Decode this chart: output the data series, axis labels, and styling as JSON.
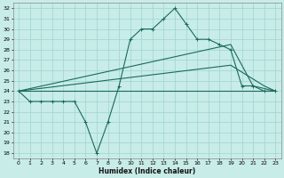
{
  "title": "",
  "xlabel": "Humidex (Indice chaleur)",
  "bg_color": "#c8ece8",
  "grid_color": "#9dd4ce",
  "line_color": "#1a6b5a",
  "xlim": [
    -0.5,
    23.5
  ],
  "ylim": [
    17.5,
    32.5
  ],
  "xticks": [
    0,
    1,
    2,
    3,
    4,
    5,
    6,
    7,
    8,
    9,
    10,
    11,
    12,
    13,
    14,
    15,
    16,
    17,
    18,
    19,
    20,
    21,
    22,
    23
  ],
  "yticks": [
    18,
    19,
    20,
    21,
    22,
    23,
    24,
    25,
    26,
    27,
    28,
    29,
    30,
    31,
    32
  ],
  "lines": [
    {
      "x": [
        0,
        1,
        2,
        3,
        4,
        5,
        6,
        7,
        8,
        9,
        10,
        11,
        12,
        13,
        14,
        15,
        16,
        17,
        18,
        19,
        20,
        21,
        22,
        23
      ],
      "y": [
        24,
        23,
        23,
        23,
        23,
        23,
        21,
        18,
        21,
        24.5,
        29,
        30,
        30,
        31,
        32,
        30.5,
        29,
        29,
        28.5,
        28,
        24.5,
        24.5,
        24,
        24
      ],
      "marker": true
    },
    {
      "x": [
        0,
        23
      ],
      "y": [
        24,
        24
      ],
      "marker": false
    },
    {
      "x": [
        0,
        19,
        22,
        23
      ],
      "y": [
        24,
        26.5,
        24.5,
        24
      ],
      "marker": false
    },
    {
      "x": [
        0,
        19,
        21,
        23
      ],
      "y": [
        24,
        28.5,
        24.5,
        24
      ],
      "marker": false
    }
  ]
}
